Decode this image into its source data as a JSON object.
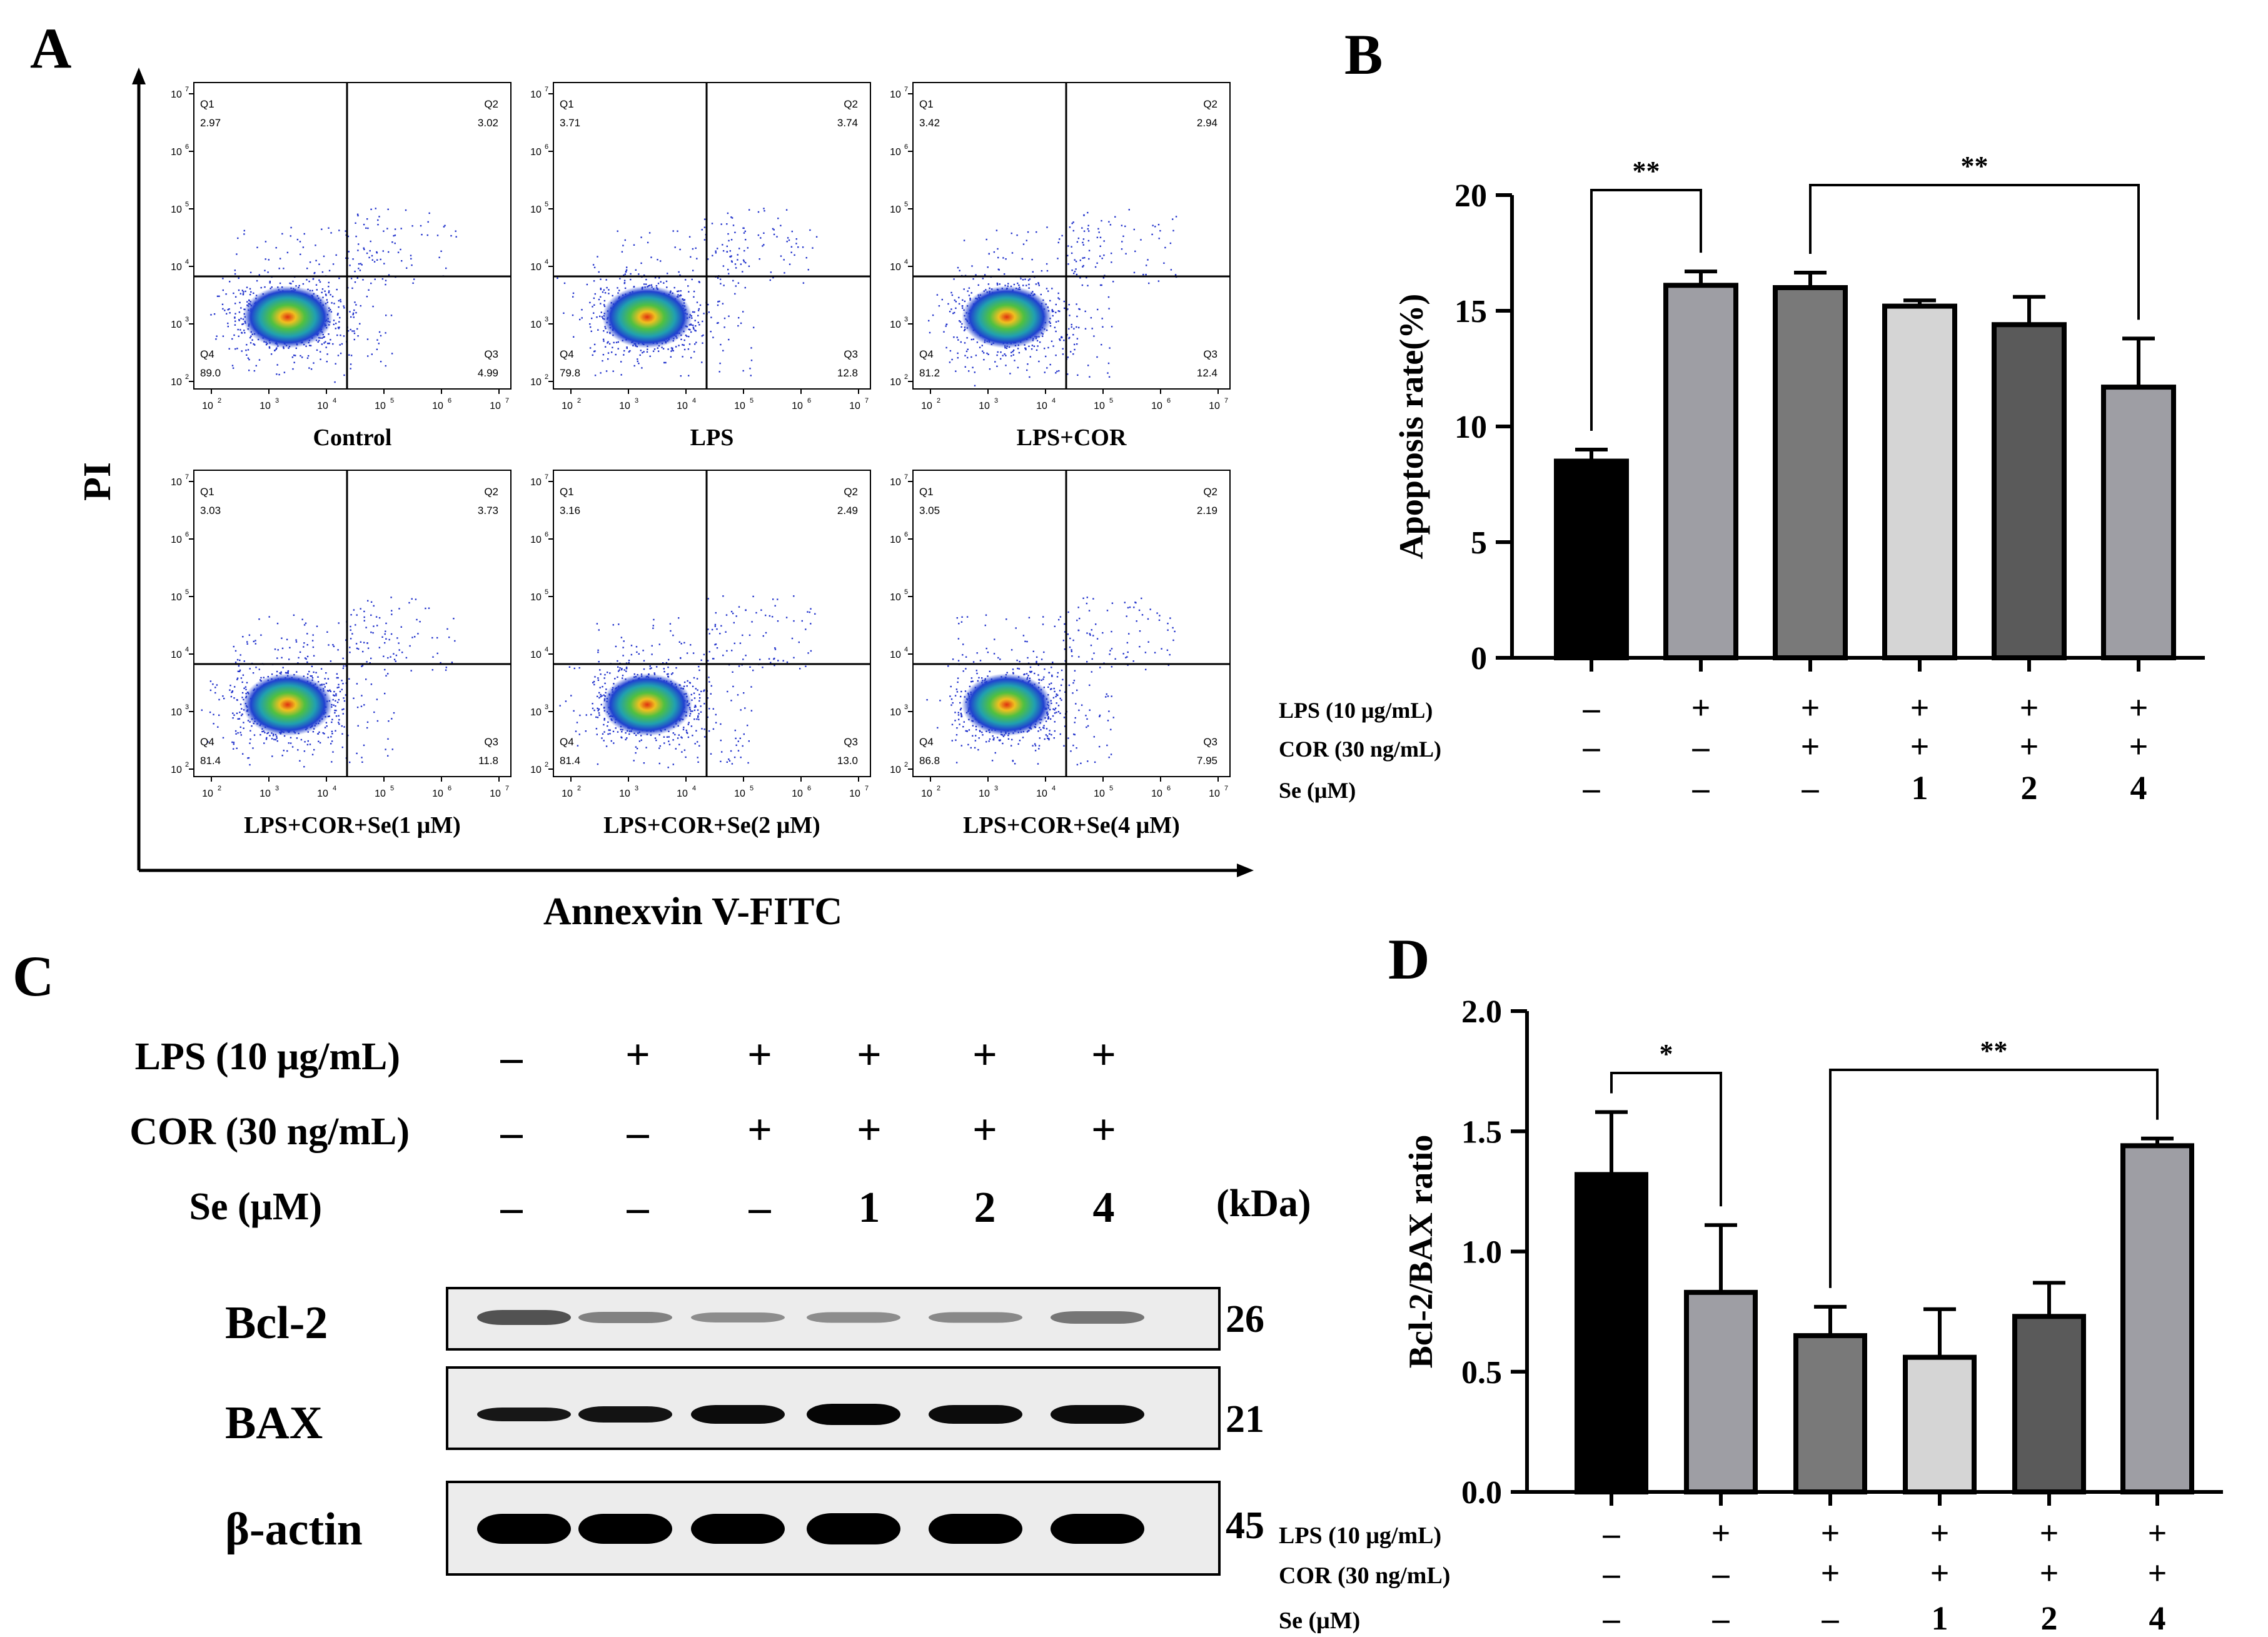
{
  "panels": {
    "a": "A",
    "b": "B",
    "c": "C",
    "d": "D"
  },
  "flow": {
    "x_axis_label": "Annexvin V-FITC",
    "y_axis_label": "PI",
    "axis_ticks": [
      "10",
      "10",
      "10",
      "10",
      "10",
      "10"
    ],
    "axis_exponents": [
      "2",
      "3",
      "4",
      "5",
      "6",
      "7"
    ],
    "plots": [
      {
        "label": "Control",
        "q1": "2.97",
        "q2": "3.02",
        "q3": "4.99",
        "q4": "89.0"
      },
      {
        "label": "LPS",
        "q1": "3.71",
        "q2": "3.74",
        "q3": "12.8",
        "q4": "79.8"
      },
      {
        "label": "LPS+COR",
        "q1": "3.42",
        "q2": "2.94",
        "q3": "12.4",
        "q4": "81.2"
      },
      {
        "label": "LPS+COR+Se(1 μM)",
        "q1": "3.03",
        "q2": "3.73",
        "q3": "11.8",
        "q4": "81.4"
      },
      {
        "label": "LPS+COR+Se(2 μM)",
        "q1": "3.16",
        "q2": "2.49",
        "q3": "13.0",
        "q4": "81.4"
      },
      {
        "label": "LPS+COR+Se(4 μM)",
        "q1": "3.05",
        "q2": "2.19",
        "q3": "7.95",
        "q4": "86.8"
      }
    ],
    "quadrant_names": [
      "Q1",
      "Q2",
      "Q3",
      "Q4"
    ]
  },
  "western": {
    "rows": [
      {
        "label": "LPS (10 μg/mL)",
        "values": [
          "–",
          "+",
          "+",
          "+",
          "+",
          "+"
        ]
      },
      {
        "label": "COR (30 ng/mL)",
        "values": [
          "–",
          "–",
          "+",
          "+",
          "+",
          "+"
        ]
      },
      {
        "label": "Se (μM)",
        "values": [
          "–",
          "–",
          "–",
          "1",
          "2",
          "4"
        ]
      }
    ],
    "kda_label": "(kDa)",
    "bands": [
      {
        "label": "Bcl-2",
        "kda": "26"
      },
      {
        "label": "BAX",
        "kda": "21"
      },
      {
        "label": "β-actin",
        "kda": "45"
      }
    ]
  },
  "treatment_rows": [
    {
      "label": "LPS (10 μg/mL)",
      "values": [
        "–",
        "+",
        "+",
        "+",
        "+",
        "+"
      ]
    },
    {
      "label": "COR (30 ng/mL)",
      "values": [
        "–",
        "–",
        "+",
        "+",
        "+",
        "+"
      ]
    },
    {
      "label": "Se (μM)",
      "values": [
        "–",
        "–",
        "–",
        "1",
        "2",
        "4"
      ]
    }
  ],
  "treatment_rows_d": [
    {
      "label": "LPS (10 μg/mL)",
      "values": [
        "–",
        "+",
        "+",
        "+",
        "+",
        "+"
      ]
    },
    {
      "label": "COR (30 ng/mL)",
      "values": [
        "–",
        "–",
        "+",
        "+",
        "+",
        "+"
      ]
    },
    {
      "label": "Se  (μM)",
      "values": [
        "–",
        "–",
        "–",
        "1",
        "2",
        "4"
      ]
    }
  ],
  "chart_data": [
    {
      "panel": "B",
      "type": "bar",
      "ylabel": "Apoptosis rate(%)",
      "ylim": [
        0,
        20
      ],
      "yticks": [
        0,
        5,
        10,
        15,
        20
      ],
      "ytick_labels": [
        "0",
        "5",
        "10",
        "15",
        "20"
      ],
      "categories": [
        "Control",
        "LPS",
        "LPS+COR",
        "LPS+COR+Se 1",
        "LPS+COR+Se 2",
        "LPS+COR+Se 4"
      ],
      "values": [
        8.5,
        16.1,
        16.0,
        15.2,
        14.4,
        11.7
      ],
      "errors": [
        0.5,
        0.6,
        0.65,
        0.25,
        1.2,
        2.1
      ],
      "colors": [
        "#000000",
        "#9e9ea4",
        "#797979",
        "#d5d5d5",
        "#5a5a5a",
        "#9e9ea4"
      ],
      "significance": [
        {
          "from": 0,
          "to": 1,
          "label": "**"
        },
        {
          "from": 2,
          "to": 5,
          "label": "**"
        }
      ]
    },
    {
      "panel": "D",
      "type": "bar",
      "ylabel": "Bcl-2/BAX ratio",
      "ylim": [
        0,
        2.0
      ],
      "yticks": [
        0,
        0.5,
        1.0,
        1.5,
        2.0
      ],
      "ytick_labels": [
        "0.0",
        "0.5",
        "1.0",
        "1.5",
        "2.0"
      ],
      "categories": [
        "Control",
        "LPS",
        "LPS+COR",
        "LPS+COR+Se 1",
        "LPS+COR+Se 2",
        "LPS+COR+Se 4"
      ],
      "values": [
        1.32,
        0.83,
        0.65,
        0.56,
        0.73,
        1.44
      ],
      "errors": [
        0.26,
        0.28,
        0.12,
        0.2,
        0.14,
        0.03
      ],
      "colors": [
        "#000000",
        "#9e9ea4",
        "#797979",
        "#d5d5d5",
        "#5a5a5a",
        "#9e9ea4"
      ],
      "significance": [
        {
          "from": 0,
          "to": 1,
          "label": "*"
        },
        {
          "from": 2,
          "to": 5,
          "label": "**"
        }
      ]
    }
  ]
}
